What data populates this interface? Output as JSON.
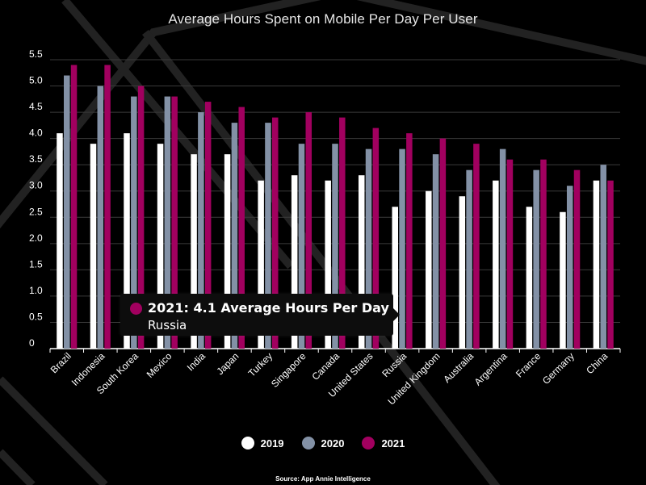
{
  "colors": {
    "background": "#000000",
    "s2019": "#ffffff",
    "s2020": "#8391a6",
    "s2021": "#a1005f",
    "grid": "#3a3a3a",
    "axis": "#ffffff"
  },
  "chart_data": {
    "type": "bar",
    "title": "Average Hours Spent on Mobile Per Day Per User",
    "categories": [
      "Brazil",
      "Indonesia",
      "South Korea",
      "Mexico",
      "India",
      "Japan",
      "Turkey",
      "Singapore",
      "Canada",
      "United States",
      "Russia",
      "United Kingdom",
      "Australia",
      "Argentina",
      "France",
      "Germany",
      "China"
    ],
    "series": [
      {
        "name": "2019",
        "values": [
          4.1,
          3.9,
          4.1,
          3.9,
          3.7,
          3.7,
          3.2,
          3.3,
          3.2,
          3.3,
          2.7,
          3.0,
          2.9,
          3.2,
          2.7,
          2.6,
          3.2
        ]
      },
      {
        "name": "2020",
        "values": [
          5.2,
          5.0,
          4.8,
          4.8,
          4.5,
          4.3,
          4.3,
          3.9,
          3.9,
          3.8,
          3.8,
          3.7,
          3.4,
          3.8,
          3.4,
          3.1,
          3.5
        ]
      },
      {
        "name": "2021",
        "values": [
          5.4,
          5.4,
          5.0,
          4.8,
          4.7,
          4.6,
          4.4,
          4.5,
          4.4,
          4.2,
          4.1,
          4.0,
          3.9,
          3.6,
          3.6,
          3.4,
          3.2
        ]
      }
    ],
    "y_ticks": [
      "0",
      "0.5",
      "1.0",
      "1.5",
      "2.0",
      "2.5",
      "3.0",
      "3.5",
      "4.0",
      "4.5",
      "5.0",
      "5.5"
    ],
    "ylim": [
      0,
      5.5
    ],
    "grid": true,
    "legend_position": "bottom",
    "tooltip": {
      "main": "2021: 4.1 Average Hours Per Day",
      "category": "Russia"
    },
    "source": "Source: App Annie Intelligence"
  }
}
